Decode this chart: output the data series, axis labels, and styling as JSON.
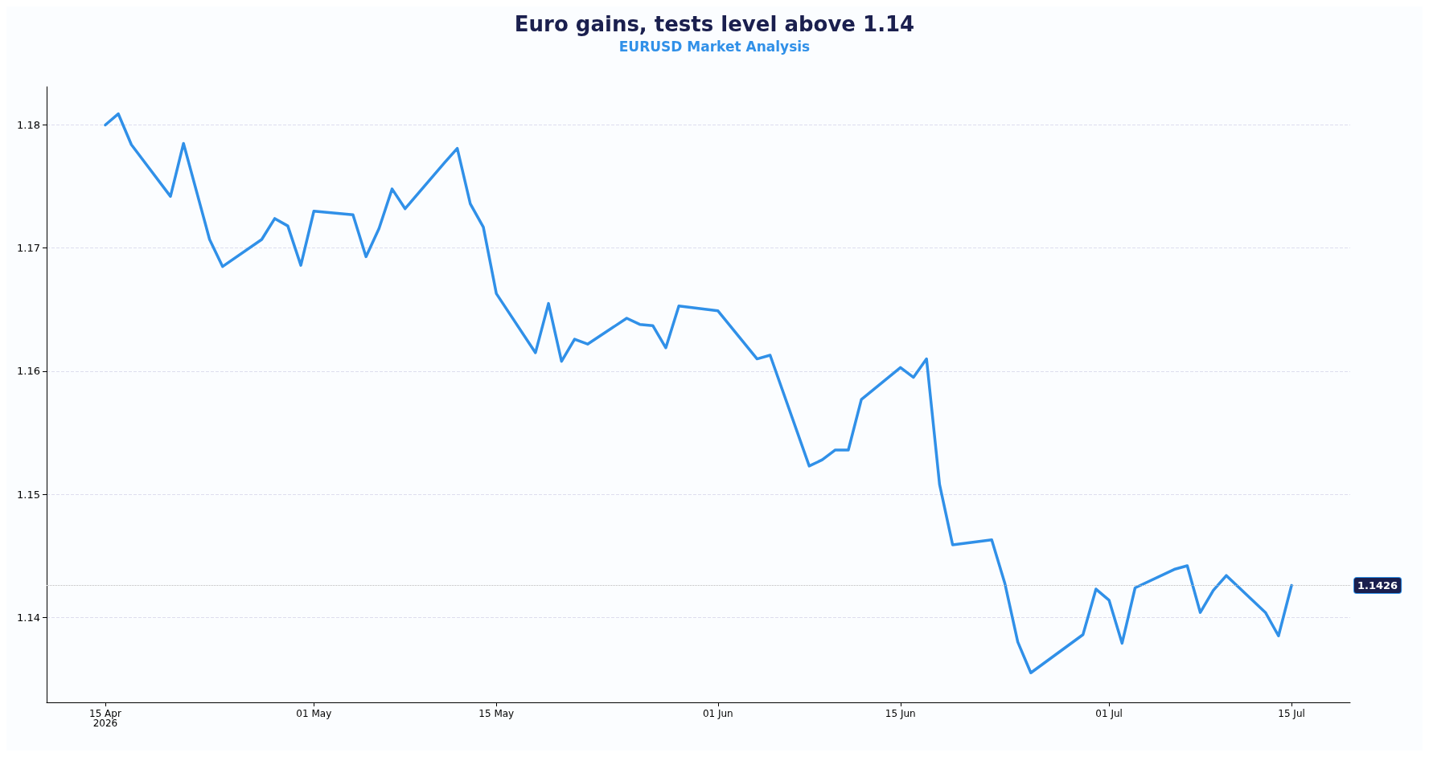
{
  "chart_data": {
    "type": "line",
    "title": "Euro gains, tests level above 1.14",
    "subtitle": "EURUSD Market Analysis",
    "x": [
      "2026-04-15",
      "2026-04-16",
      "2026-04-17",
      "2026-04-20",
      "2026-04-21",
      "2026-04-23",
      "2026-04-24",
      "2026-04-27",
      "2026-04-28",
      "2026-04-29",
      "2026-04-30",
      "2026-05-01",
      "2026-05-04",
      "2026-05-05",
      "2026-05-06",
      "2026-05-07",
      "2026-05-08",
      "2026-05-11",
      "2026-05-12",
      "2026-05-13",
      "2026-05-14",
      "2026-05-15",
      "2026-05-18",
      "2026-05-19",
      "2026-05-20",
      "2026-05-21",
      "2026-05-22",
      "2026-05-25",
      "2026-05-26",
      "2026-05-27",
      "2026-05-28",
      "2026-05-29",
      "2026-06-01",
      "2026-06-04",
      "2026-06-05",
      "2026-06-08",
      "2026-06-09",
      "2026-06-10",
      "2026-06-11",
      "2026-06-12",
      "2026-06-15",
      "2026-06-16",
      "2026-06-17",
      "2026-06-18",
      "2026-06-19",
      "2026-06-22",
      "2026-06-23",
      "2026-06-24",
      "2026-06-25",
      "2026-06-29",
      "2026-06-30",
      "2026-07-01",
      "2026-07-02",
      "2026-07-03",
      "2026-07-06",
      "2026-07-07",
      "2026-07-08",
      "2026-07-09",
      "2026-07-10",
      "2026-07-13",
      "2026-07-14",
      "2026-07-15"
    ],
    "series": [
      {
        "color": "#3090e8",
        "values": [
          1.18,
          1.1809,
          1.1784,
          1.1742,
          1.1785,
          1.1707,
          1.1685,
          1.1707,
          1.1724,
          1.1718,
          1.1686,
          1.173,
          1.1727,
          1.1693,
          1.1716,
          1.1748,
          1.1732,
          1.1769,
          1.1781,
          1.1736,
          1.1717,
          1.1663,
          1.1615,
          1.1655,
          1.1608,
          1.1626,
          1.1622,
          1.1643,
          1.1638,
          1.1637,
          1.1619,
          1.1653,
          1.1649,
          1.161,
          1.1613,
          1.1523,
          1.1528,
          1.1536,
          1.1536,
          1.1577,
          1.1603,
          1.1595,
          1.161,
          1.1508,
          1.1459,
          1.1463,
          1.1428,
          1.138,
          1.1355,
          1.1386,
          1.1423,
          1.1414,
          1.1379,
          1.1424,
          1.1439,
          1.1442,
          1.1404,
          1.1422,
          1.1434,
          1.1404,
          1.1385,
          1.1426
        ]
      }
    ],
    "xlim": [
      "2026-04-10T12:00",
      "2026-07-19T12:00"
    ],
    "xticks": [
      {
        "value": "2026-04-15",
        "label": "15 Apr\n2026"
      },
      {
        "value": "2026-05-01",
        "label": "01 May"
      },
      {
        "value": "2026-05-15",
        "label": "15 May"
      },
      {
        "value": "2026-06-01",
        "label": "01 Jun"
      },
      {
        "value": "2026-06-15",
        "label": "15 Jun"
      },
      {
        "value": "2026-07-01",
        "label": "01 Jul"
      },
      {
        "value": "2026-07-15",
        "label": "15 Jul"
      }
    ],
    "ylim": [
      1.1331,
      1.1831
    ],
    "yticks": [
      1.14,
      1.15,
      1.16,
      1.17,
      1.18
    ],
    "grid": "y",
    "marker": "none",
    "line_style": "solid",
    "ref_lines": [
      {
        "axis": "y",
        "value": 1.1426,
        "label": "1.1426",
        "line_style": "dotted",
        "color": "#bbbbbb"
      }
    ]
  }
}
